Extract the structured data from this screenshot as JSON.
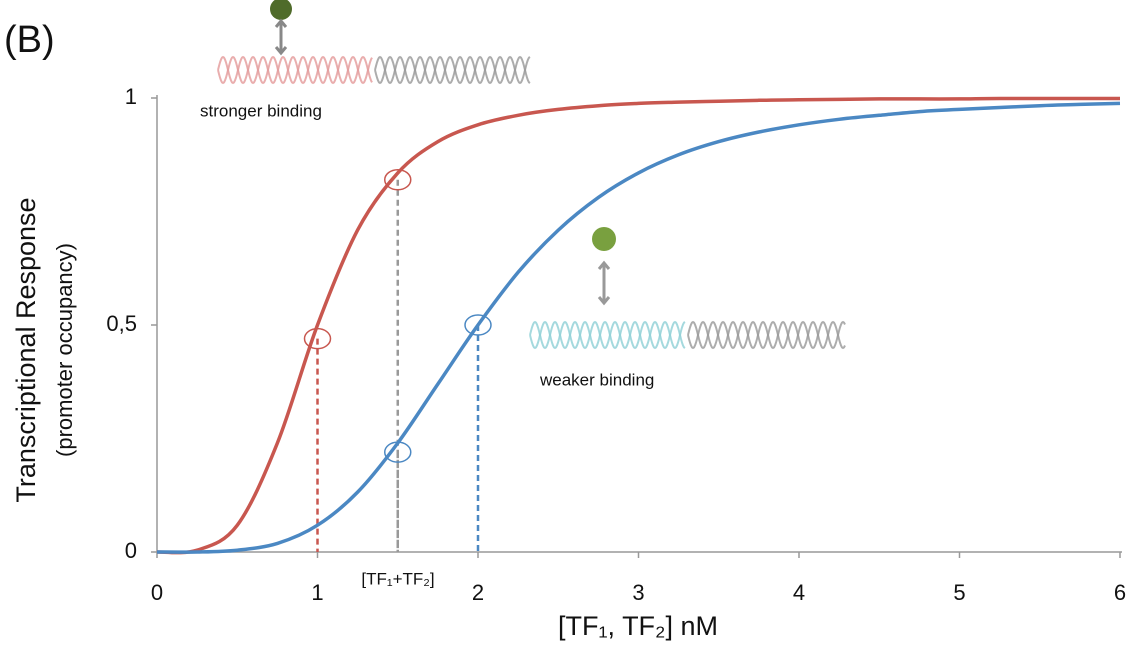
{
  "chart_data": {
    "type": "line",
    "panel_label": "(B)",
    "ylabel": "Transcriptional Response",
    "ylabel_sub": "(promoter occupancy)",
    "xlabel": "[TF₁, TF₂] nM",
    "annotations": {
      "stronger": "stronger binding",
      "weaker": "weaker binding",
      "sum": "[TF₁+TF₂]"
    },
    "xlim": [
      0,
      6
    ],
    "xticks": [
      0,
      1,
      2,
      3,
      4,
      5,
      6
    ],
    "ylim": [
      0,
      1
    ],
    "yticks": [
      0,
      {
        "value": 0.5,
        "label": "0,5"
      },
      1
    ],
    "x": [
      0,
      0.25,
      0.5,
      0.75,
      1,
      1.25,
      1.5,
      1.75,
      2,
      2.25,
      2.5,
      2.75,
      3,
      3.25,
      3.5,
      3.75,
      4,
      4.25,
      4.5,
      4.75,
      5,
      5.25,
      5.5,
      5.75,
      6
    ],
    "series": [
      {
        "color": "#c8574f",
        "values": [
          0,
          0.004,
          0.059,
          0.24,
          0.5,
          0.709,
          0.835,
          0.904,
          0.941,
          0.962,
          0.975,
          0.983,
          0.988,
          0.991,
          0.993,
          0.995,
          0.996,
          0.997,
          0.998,
          0.998,
          0.998,
          0.999,
          0.999,
          0.999,
          0.999
        ]
      },
      {
        "color": "#4b88c3",
        "values": [
          0,
          0,
          0.004,
          0.019,
          0.059,
          0.132,
          0.24,
          0.37,
          0.5,
          0.616,
          0.709,
          0.781,
          0.835,
          0.875,
          0.904,
          0.925,
          0.941,
          0.953,
          0.962,
          0.97,
          0.975,
          0.979,
          0.983,
          0.986,
          0.988
        ]
      }
    ],
    "markers": [
      {
        "x": 1,
        "y": 0.47,
        "color": "#c8574f"
      },
      {
        "x": 1.5,
        "y": 0.82,
        "color": "#c8574f"
      },
      {
        "x": 1.5,
        "y": 0.22,
        "color": "#4b88c3"
      },
      {
        "x": 2,
        "y": 0.5,
        "color": "#4b88c3"
      }
    ]
  }
}
